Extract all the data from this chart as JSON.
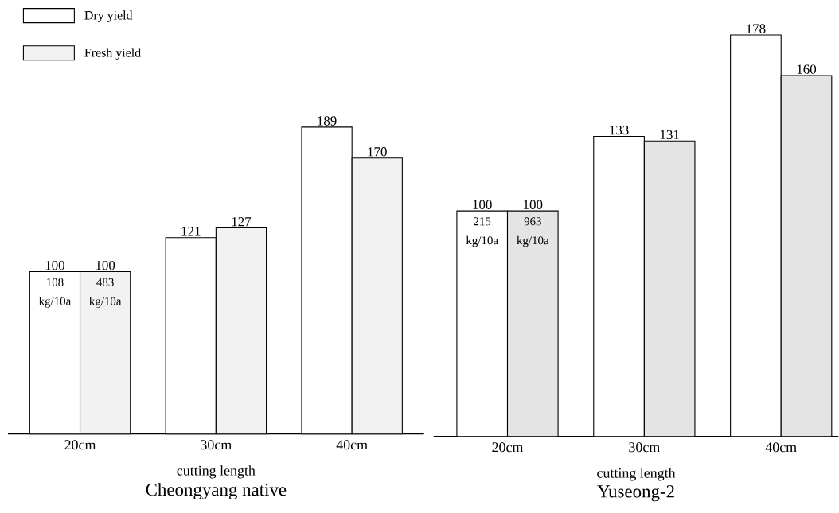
{
  "chart_data": [
    {
      "type": "bar",
      "title": "Cheongyang native",
      "xlabel": "cutting length",
      "legend": "top left",
      "data_labels": true,
      "tick_labels": "x",
      "categories": [
        "20cm",
        "30cm",
        "40cm"
      ],
      "series": [
        {
          "name": "Dry yield",
          "color": "#ffffff",
          "values": [
            100,
            121,
            189
          ]
        },
        {
          "name": "Fresh yield",
          "color": "#f2f2f2",
          "values": [
            100,
            127,
            170
          ]
        }
      ],
      "annotations": [
        "108 kg/10a",
        "483 kg/10a"
      ]
    },
    {
      "type": "bar",
      "title": "Yuseong-2",
      "xlabel": "cutting length",
      "data_labels": true,
      "tick_labels": "x",
      "categories": [
        "20cm",
        "30cm",
        "40cm"
      ],
      "series": [
        {
          "color": "#ffffff",
          "values": [
            100,
            133,
            178
          ]
        },
        {
          "color": "#e4e4e4",
          "values": [
            100,
            131,
            160
          ]
        }
      ],
      "annotations": [
        "215 kg/10a",
        "963 kg/10a"
      ]
    }
  ]
}
